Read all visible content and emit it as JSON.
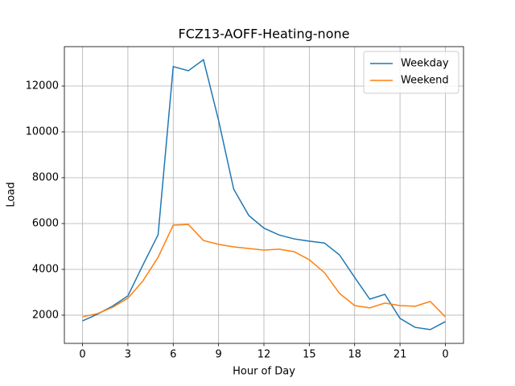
{
  "chart_data": {
    "type": "line",
    "title": "FCZ13-AOFF-Heating-none",
    "xlabel": "Hour of Day",
    "ylabel": "Load",
    "x": [
      0,
      1,
      2,
      3,
      4,
      5,
      6,
      7,
      8,
      9,
      10,
      11,
      12,
      13,
      14,
      15,
      16,
      17,
      18,
      19,
      20,
      21,
      22,
      23,
      24
    ],
    "series": [
      {
        "name": "Weekday",
        "color": "#1f77b4",
        "values": [
          1750,
          2050,
          2400,
          2840,
          4200,
          5510,
          12850,
          12670,
          13150,
          10500,
          7500,
          6350,
          5800,
          5500,
          5330,
          5230,
          5150,
          4630,
          3650,
          2700,
          2910,
          1860,
          1470,
          1370,
          1720
        ]
      },
      {
        "name": "Weekend",
        "color": "#ff7f0e",
        "values": [
          1930,
          2070,
          2350,
          2740,
          3500,
          4530,
          5930,
          5960,
          5260,
          5090,
          4980,
          4910,
          4840,
          4880,
          4770,
          4420,
          3860,
          2950,
          2420,
          2320,
          2530,
          2420,
          2390,
          2600,
          1930
        ]
      }
    ],
    "xlim": [
      -1.2,
      25.2
    ],
    "ylim": [
      770,
      13720
    ],
    "xticks": [
      0,
      3,
      6,
      9,
      12,
      15,
      18,
      21,
      {
        "value": 24,
        "label": "0"
      }
    ],
    "yticks": [
      2000,
      4000,
      6000,
      8000,
      10000,
      12000
    ],
    "grid": true,
    "legend": "upper right"
  }
}
